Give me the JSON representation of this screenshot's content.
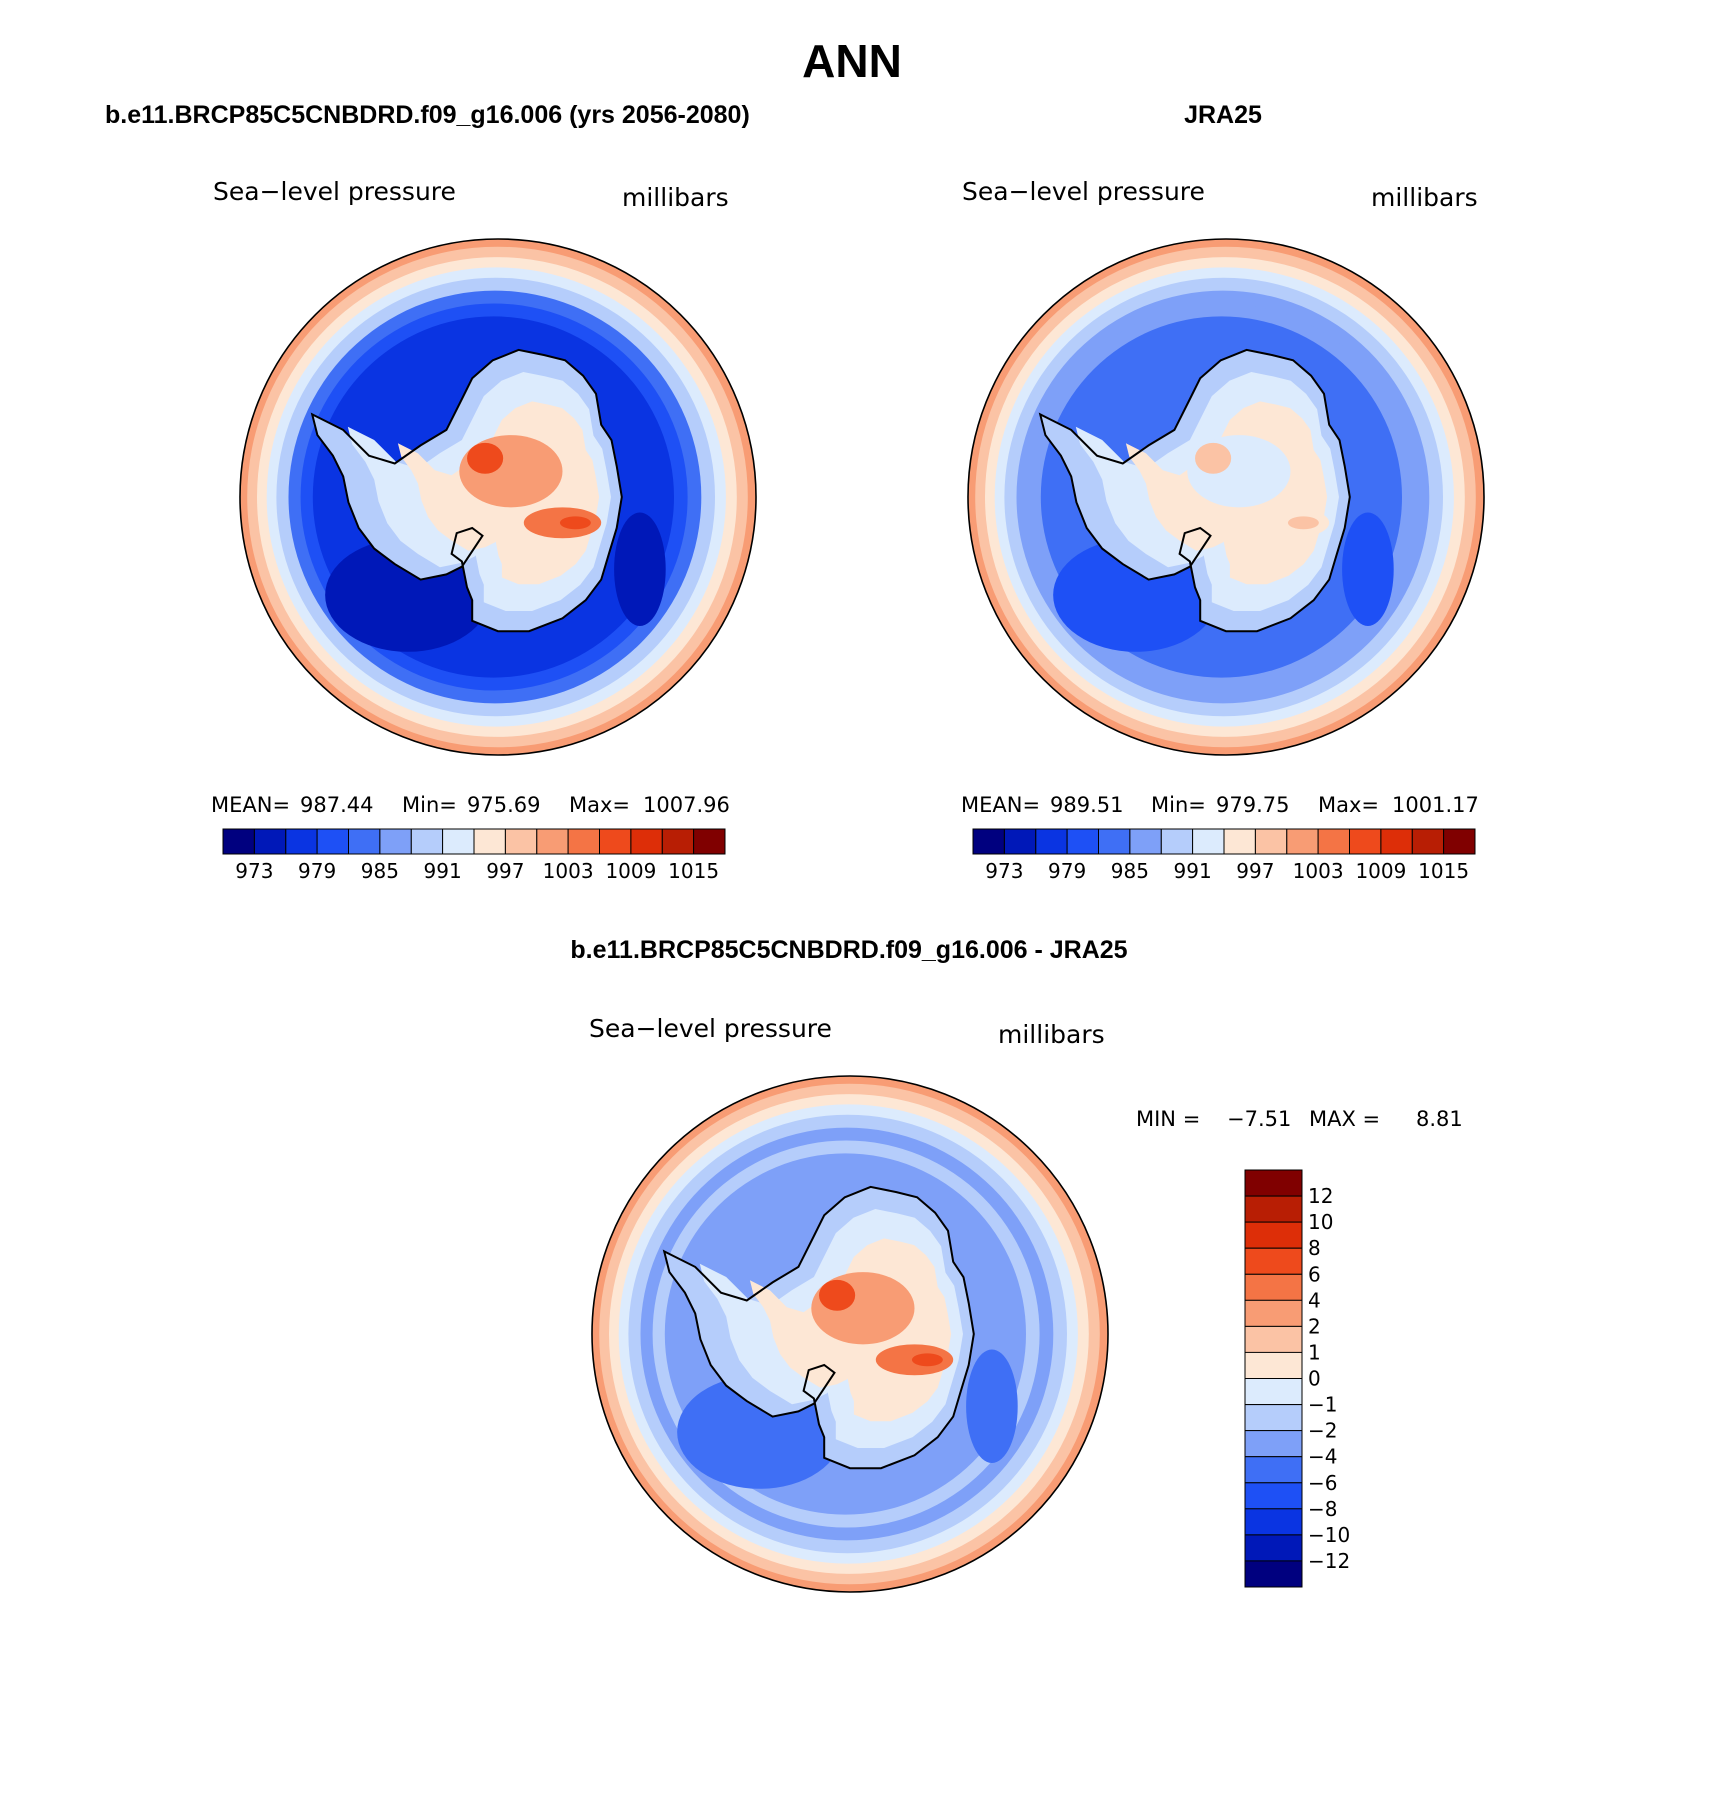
{
  "main_title": "ANN",
  "palette": [
    "#00007f",
    "#0018b8",
    "#0a34e2",
    "#1e50f5",
    "#3f6ff5",
    "#7ea0f8",
    "#b5cdfb",
    "#dcebfd",
    "#fde7d5",
    "#fbc3a5",
    "#f89c74",
    "#f47445",
    "#ee4a1c",
    "#dd2e08",
    "#b81e04",
    "#800000"
  ],
  "chart_data": [
    {
      "type": "heatmap",
      "title": "b.e11.BRCP85C5CNBDRD.f09_g16.006 (yrs 2056-2080)",
      "left_label": "Sea−level pressure",
      "right_label": "millibars",
      "projection": "south-polar-stereographic",
      "stats": {
        "mean_label": "MEAN=",
        "mean": "987.44",
        "min_label": "Min=",
        "min": "975.69",
        "max_label": "Max=",
        "max": "1007.96"
      },
      "colorbar": {
        "orientation": "horizontal",
        "levels": [
          "973",
          "979",
          "985",
          "991",
          "997",
          "1003",
          "1009",
          "1015"
        ]
      },
      "field": {
        "background_class": 2,
        "outer_edge_class": 10,
        "ice_peak_class": 12
      }
    },
    {
      "type": "heatmap",
      "title": "JRA25",
      "left_label": "Sea−level pressure",
      "right_label": "millibars",
      "projection": "south-polar-stereographic",
      "stats": {
        "mean_label": "MEAN=",
        "mean": "989.51",
        "min_label": "Min=",
        "min": "979.75",
        "max_label": "Max=",
        "max": "1001.17"
      },
      "colorbar": {
        "orientation": "horizontal",
        "levels": [
          "973",
          "979",
          "985",
          "991",
          "997",
          "1003",
          "1009",
          "1015"
        ]
      },
      "field": {
        "background_class": 4,
        "outer_edge_class": 10,
        "ice_peak_class": 9
      }
    },
    {
      "type": "heatmap",
      "title": "b.e11.BRCP85C5CNBDRD.f09_g16.006 - JRA25",
      "left_label": "Sea−level pressure",
      "right_label": "millibars",
      "projection": "south-polar-stereographic",
      "stats": {
        "min_label": "MIN =",
        "min": "−7.51",
        "max_label": "MAX =",
        "max": "8.81"
      },
      "colorbar": {
        "orientation": "vertical",
        "levels": [
          "12",
          "10",
          "8",
          "6",
          "4",
          "2",
          "1",
          "0",
          "−1",
          "−2",
          "−4",
          "−6",
          "−8",
          "−10",
          "−12"
        ]
      },
      "field": {
        "background_class": 5,
        "outer_edge_class": 10,
        "ice_peak_class": 12
      }
    }
  ]
}
